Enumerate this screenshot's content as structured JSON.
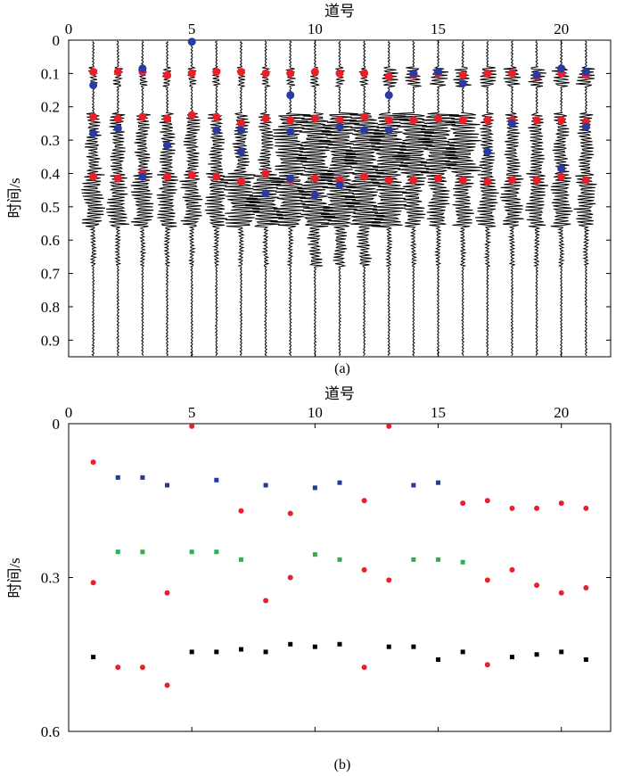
{
  "chart_data": [
    {
      "panel": "(a)",
      "type": "scatter",
      "xlabel": "道号",
      "ylabel": "时间/s",
      "xlim": [
        0,
        22
      ],
      "ylim": [
        0,
        0.95
      ],
      "x_ticks": [
        0,
        5,
        10,
        15,
        20
      ],
      "y_ticks": [
        0,
        0.1,
        0.2,
        0.3,
        0.4,
        0.5,
        0.6,
        0.7,
        0.8,
        0.9
      ],
      "y_inverted": true,
      "x_axis_position": "top",
      "background": "seismic wiggle traces, one per channel 1-21",
      "series": [
        {
          "color": "#e8202a",
          "points": [
            [
              1,
              0.095
            ],
            [
              2,
              0.095
            ],
            [
              3,
              0.095
            ],
            [
              4,
              0.105
            ],
            [
              5,
              0.1
            ],
            [
              6,
              0.095
            ],
            [
              7,
              0.095
            ],
            [
              8,
              0.1
            ],
            [
              9,
              0.1
            ],
            [
              10,
              0.095
            ],
            [
              11,
              0.1
            ],
            [
              12,
              0.1
            ],
            [
              13,
              0.11
            ],
            [
              14,
              0.105
            ],
            [
              15,
              0.1
            ],
            [
              16,
              0.105
            ],
            [
              17,
              0.1
            ],
            [
              18,
              0.1
            ],
            [
              19,
              0.11
            ],
            [
              20,
              0.1
            ],
            [
              21,
              0.105
            ],
            [
              1,
              0.23
            ],
            [
              2,
              0.235
            ],
            [
              3,
              0.23
            ],
            [
              4,
              0.235
            ],
            [
              5,
              0.225
            ],
            [
              6,
              0.23
            ],
            [
              7,
              0.25
            ],
            [
              8,
              0.235
            ],
            [
              9,
              0.24
            ],
            [
              10,
              0.235
            ],
            [
              11,
              0.24
            ],
            [
              12,
              0.23
            ],
            [
              13,
              0.24
            ],
            [
              14,
              0.24
            ],
            [
              15,
              0.235
            ],
            [
              16,
              0.24
            ],
            [
              17,
              0.24
            ],
            [
              18,
              0.24
            ],
            [
              19,
              0.24
            ],
            [
              20,
              0.24
            ],
            [
              21,
              0.245
            ],
            [
              1,
              0.41
            ],
            [
              2,
              0.415
            ],
            [
              3,
              0.4
            ],
            [
              4,
              0.41
            ],
            [
              5,
              0.405
            ],
            [
              6,
              0.41
            ],
            [
              7,
              0.425
            ],
            [
              8,
              0.4
            ],
            [
              9,
              0.42
            ],
            [
              10,
              0.415
            ],
            [
              11,
              0.42
            ],
            [
              12,
              0.41
            ],
            [
              13,
              0.42
            ],
            [
              14,
              0.42
            ],
            [
              15,
              0.415
            ],
            [
              16,
              0.42
            ],
            [
              17,
              0.425
            ],
            [
              18,
              0.42
            ],
            [
              19,
              0.42
            ],
            [
              20,
              0.41
            ],
            [
              21,
              0.42
            ]
          ]
        },
        {
          "color": "#2a3aa0",
          "points": [
            [
              1,
              0.135
            ],
            [
              2,
              0.265
            ],
            [
              3,
              0.085
            ],
            [
              4,
              0.315
            ],
            [
              5,
              0.005
            ],
            [
              6,
              0.27
            ],
            [
              7,
              0.335
            ],
            [
              8,
              0.46
            ],
            [
              9,
              0.165
            ],
            [
              10,
              0.465
            ],
            [
              11,
              0.435
            ],
            [
              12,
              0.27
            ],
            [
              13,
              0.165
            ],
            [
              14,
              0.1
            ],
            [
              15,
              0.095
            ],
            [
              16,
              0.13
            ],
            [
              17,
              0.335
            ],
            [
              18,
              0.25
            ],
            [
              19,
              0.105
            ],
            [
              20,
              0.385
            ],
            [
              21,
              0.095
            ],
            [
              1,
              0.28
            ],
            [
              3,
              0.41
            ],
            [
              7,
              0.27
            ],
            [
              9,
              0.275
            ],
            [
              9,
              0.415
            ],
            [
              11,
              0.26
            ],
            [
              13,
              0.27
            ],
            [
              20,
              0.085
            ],
            [
              21,
              0.26
            ]
          ]
        }
      ]
    },
    {
      "panel": "(b)",
      "type": "scatter",
      "xlabel": "道号",
      "ylabel": "时间/s",
      "xlim": [
        0,
        22
      ],
      "ylim": [
        0,
        0.6
      ],
      "x_ticks": [
        0,
        5,
        10,
        15,
        20
      ],
      "y_ticks": [
        0,
        0.3,
        0.6
      ],
      "y_inverted": true,
      "x_axis_position": "top",
      "series": [
        {
          "color": "#e8202a",
          "marker": "circle",
          "points": [
            [
              1,
              0.075
            ],
            [
              1,
              0.31
            ],
            [
              2,
              0.475
            ],
            [
              3,
              0.475
            ],
            [
              4,
              0.33
            ],
            [
              4,
              0.51
            ],
            [
              5,
              0.005
            ],
            [
              7,
              0.17
            ],
            [
              8,
              0.345
            ],
            [
              9,
              0.175
            ],
            [
              9,
              0.3
            ],
            [
              12,
              0.15
            ],
            [
              12,
              0.285
            ],
            [
              12,
              0.475
            ],
            [
              13,
              0.005
            ],
            [
              13,
              0.305
            ],
            [
              16,
              0.155
            ],
            [
              17,
              0.15
            ],
            [
              17,
              0.305
            ],
            [
              17,
              0.47
            ],
            [
              18,
              0.165
            ],
            [
              18,
              0.285
            ],
            [
              19,
              0.165
            ],
            [
              19,
              0.315
            ],
            [
              20,
              0.155
            ],
            [
              20,
              0.33
            ],
            [
              21,
              0.165
            ],
            [
              21,
              0.32
            ]
          ]
        },
        {
          "color": "#1f3a9a",
          "marker": "square",
          "points": [
            [
              2,
              0.105
            ],
            [
              3,
              0.105
            ],
            [
              4,
              0.12
            ],
            [
              6,
              0.11
            ],
            [
              8,
              0.12
            ],
            [
              10,
              0.125
            ],
            [
              11,
              0.115
            ],
            [
              14,
              0.12
            ],
            [
              15,
              0.115
            ]
          ]
        },
        {
          "color": "#2bb24c",
          "marker": "square",
          "points": [
            [
              2,
              0.25
            ],
            [
              3,
              0.25
            ],
            [
              5,
              0.25
            ],
            [
              6,
              0.25
            ],
            [
              7,
              0.265
            ],
            [
              10,
              0.255
            ],
            [
              11,
              0.265
            ],
            [
              14,
              0.265
            ],
            [
              15,
              0.265
            ],
            [
              16,
              0.27
            ]
          ]
        },
        {
          "color": "#000000",
          "marker": "square",
          "points": [
            [
              1,
              0.455
            ],
            [
              5,
              0.445
            ],
            [
              6,
              0.445
            ],
            [
              7,
              0.44
            ],
            [
              8,
              0.445
            ],
            [
              9,
              0.43
            ],
            [
              10,
              0.435
            ],
            [
              11,
              0.43
            ],
            [
              13,
              0.435
            ],
            [
              14,
              0.435
            ],
            [
              15,
              0.46
            ],
            [
              16,
              0.445
            ],
            [
              18,
              0.455
            ],
            [
              19,
              0.45
            ],
            [
              20,
              0.445
            ],
            [
              21,
              0.46
            ]
          ]
        }
      ]
    }
  ]
}
